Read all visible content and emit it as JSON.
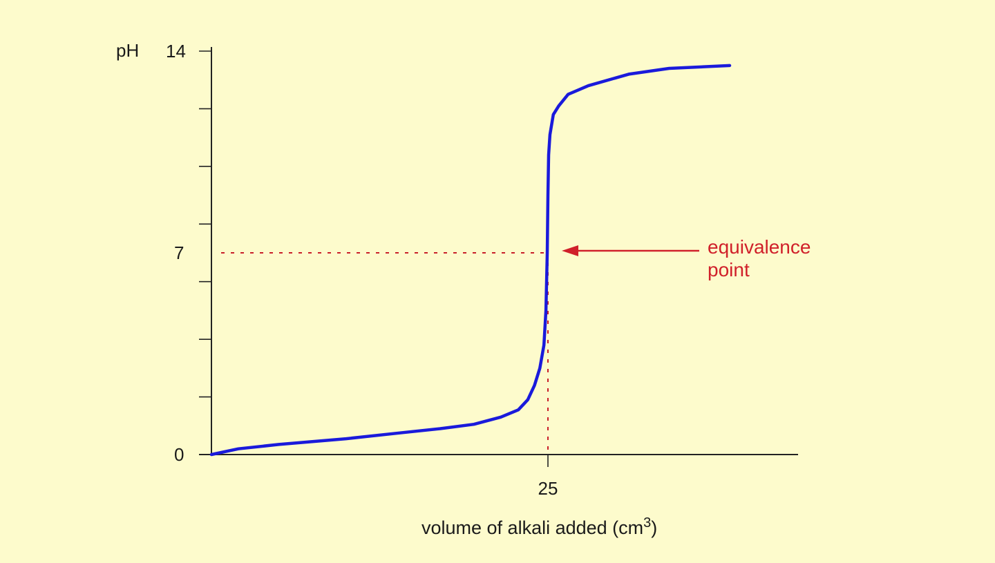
{
  "chart_data": {
    "type": "line",
    "title": "",
    "xlabel": "volume of alkali added (cm",
    "xlabel_superscript": "3",
    "xlabel_close": ")",
    "ylabel": "pH",
    "xlim": [
      0,
      37
    ],
    "ylim": [
      0,
      14
    ],
    "x_ticks": [
      {
        "value": 25,
        "label": "25"
      }
    ],
    "y_ticks": [
      {
        "value": 0,
        "label": "0"
      },
      {
        "value": 7,
        "label": "7"
      },
      {
        "value": 14,
        "label": "14"
      }
    ],
    "y_minor_ticks": [
      2,
      4,
      6,
      8,
      10,
      12,
      14
    ],
    "grid": false,
    "series": [
      {
        "color": "#1a1adb",
        "x": [
          0,
          2,
          5,
          10,
          14,
          17,
          19.5,
          21.5,
          22.8,
          23.5,
          24,
          24.4,
          24.7,
          24.85,
          24.95,
          25.0,
          25.05,
          25.15,
          25.4,
          25.8,
          26.5,
          28,
          31,
          34,
          38.5
        ],
        "y": [
          0,
          0.2,
          0.35,
          0.55,
          0.75,
          0.9,
          1.05,
          1.3,
          1.55,
          1.9,
          2.4,
          3.0,
          3.8,
          5.0,
          7.0,
          9.0,
          10.4,
          11.1,
          11.8,
          12.1,
          12.5,
          12.8,
          13.2,
          13.4,
          13.5
        ]
      }
    ],
    "reference_lines": {
      "color": "#c81e28",
      "horizontal_y": 7,
      "vertical_x": 25
    },
    "annotation": {
      "lines": [
        "equivalence",
        "point"
      ],
      "color": "#d0202a",
      "arrow_to": {
        "x": 25,
        "y": 7
      }
    }
  }
}
